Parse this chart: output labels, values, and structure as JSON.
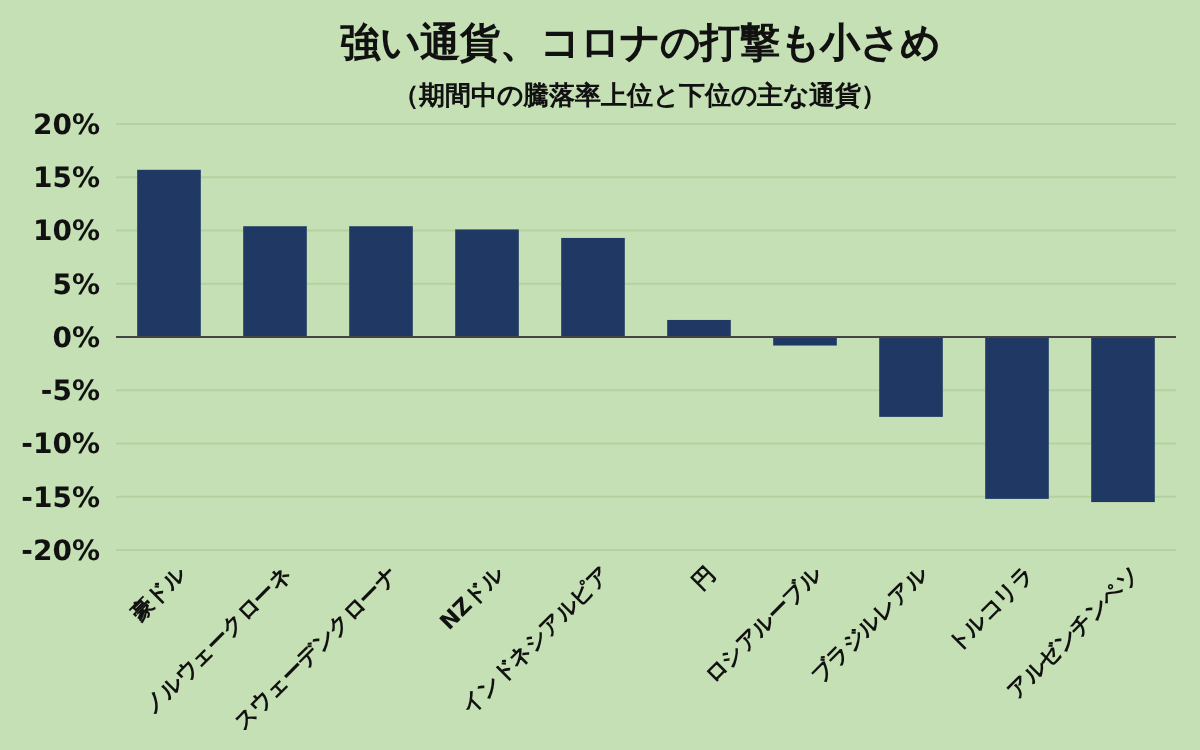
{
  "chart_data": {
    "type": "bar",
    "title": "強い通貨、コロナの打撃も小さめ",
    "subtitle": "（期間中の騰落率上位と下位の主な通貨）",
    "categories": [
      "豪ドル",
      "ノルウェークローネ",
      "スウェーデンクローナ",
      "NZドル",
      "インドネシアルピア",
      "円",
      "ロシアルーブル",
      "ブラジルレアル",
      "トルコリラ",
      "アルゼンチンペソ"
    ],
    "values": [
      15.7,
      10.4,
      10.4,
      10.1,
      9.3,
      1.6,
      -0.8,
      -7.5,
      -15.2,
      -15.5
    ],
    "color": "#1f3864",
    "ylim": [
      -20,
      20
    ],
    "yticks": [
      {
        "value": -20,
        "label": "-20%"
      },
      {
        "value": -15,
        "label": "-15%"
      },
      {
        "value": -10,
        "label": "-10%"
      },
      {
        "value": -5,
        "label": "-5%"
      },
      {
        "value": 0,
        "label": "0%"
      },
      {
        "value": 5,
        "label": "5%"
      },
      {
        "value": 10,
        "label": "10%"
      },
      {
        "value": 15,
        "label": "15%"
      },
      {
        "value": 20,
        "label": "20%"
      }
    ],
    "grid": "y"
  }
}
